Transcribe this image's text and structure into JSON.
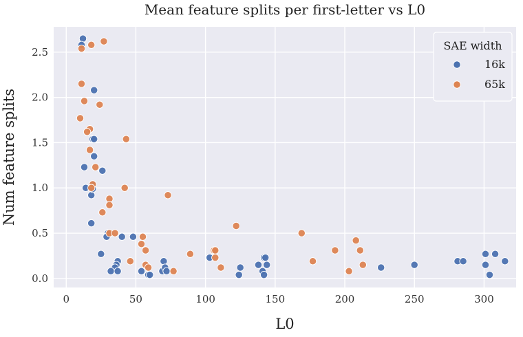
{
  "chart_data": {
    "type": "scatter",
    "title": "Mean feature splits per first-letter vs L0",
    "xlabel": "L0",
    "ylabel": "Num feature splits",
    "xlim": [
      -9,
      323
    ],
    "ylim": [
      -0.1,
      2.78
    ],
    "x_ticks": [
      0,
      50,
      100,
      150,
      200,
      250,
      300
    ],
    "y_ticks": [
      0.0,
      0.5,
      1.0,
      1.5,
      2.0,
      2.5
    ],
    "y_tick_labels": [
      "0.0",
      "0.5",
      "1.0",
      "1.5",
      "2.0",
      "2.5"
    ],
    "grid": true,
    "legend": {
      "title": "SAE width",
      "placement": "top-right"
    },
    "series": [
      {
        "name": "16k",
        "color": "#4c72b0",
        "points": [
          [
            12,
            2.65
          ],
          [
            11,
            2.58
          ],
          [
            20,
            2.08
          ],
          [
            19,
            1.54
          ],
          [
            20,
            1.54
          ],
          [
            20,
            1.35
          ],
          [
            13,
            1.23
          ],
          [
            26,
            1.19
          ],
          [
            14,
            1.0
          ],
          [
            18,
            0.92
          ],
          [
            19,
            1.0
          ],
          [
            19,
            0.99
          ],
          [
            19,
            1.04
          ],
          [
            18,
            0.61
          ],
          [
            30,
            0.5
          ],
          [
            29,
            0.46
          ],
          [
            40,
            0.46
          ],
          [
            48,
            0.46
          ],
          [
            25,
            0.27
          ],
          [
            37,
            0.19
          ],
          [
            36,
            0.15
          ],
          [
            35,
            0.12
          ],
          [
            32,
            0.08
          ],
          [
            37,
            0.08
          ],
          [
            54,
            0.08
          ],
          [
            59,
            0.04
          ],
          [
            60,
            0.04
          ],
          [
            69,
            0.08
          ],
          [
            70,
            0.19
          ],
          [
            71,
            0.12
          ],
          [
            72,
            0.08
          ],
          [
            103,
            0.23
          ],
          [
            124,
            0.04
          ],
          [
            125,
            0.12
          ],
          [
            138,
            0.15
          ],
          [
            141,
            0.08
          ],
          [
            142,
            0.23
          ],
          [
            142,
            0.04
          ],
          [
            143,
            0.23
          ],
          [
            144,
            0.15
          ],
          [
            226,
            0.12
          ],
          [
            250,
            0.15
          ],
          [
            281,
            0.19
          ],
          [
            285,
            0.19
          ],
          [
            301,
            0.27
          ],
          [
            301,
            0.15
          ],
          [
            304,
            0.04
          ],
          [
            308,
            0.27
          ],
          [
            315,
            0.19
          ]
        ]
      },
      {
        "name": "65k",
        "color": "#dd8452",
        "points": [
          [
            11,
            2.54
          ],
          [
            18,
            2.58
          ],
          [
            27,
            2.62
          ],
          [
            11,
            2.15
          ],
          [
            13,
            1.96
          ],
          [
            24,
            1.92
          ],
          [
            10,
            1.77
          ],
          [
            17,
            1.65
          ],
          [
            15,
            1.62
          ],
          [
            43,
            1.54
          ],
          [
            17,
            1.42
          ],
          [
            21,
            1.23
          ],
          [
            19,
            1.04
          ],
          [
            18,
            1.0
          ],
          [
            42,
            1.0
          ],
          [
            73,
            0.92
          ],
          [
            31,
            0.88
          ],
          [
            31,
            0.81
          ],
          [
            26,
            0.73
          ],
          [
            31,
            0.5
          ],
          [
            35,
            0.5
          ],
          [
            55,
            0.46
          ],
          [
            54,
            0.38
          ],
          [
            57,
            0.31
          ],
          [
            46,
            0.19
          ],
          [
            57,
            0.15
          ],
          [
            59,
            0.12
          ],
          [
            77,
            0.08
          ],
          [
            89,
            0.27
          ],
          [
            106,
            0.31
          ],
          [
            107,
            0.31
          ],
          [
            107,
            0.23
          ],
          [
            111,
            0.12
          ],
          [
            122,
            0.58
          ],
          [
            169,
            0.5
          ],
          [
            177,
            0.19
          ],
          [
            193,
            0.31
          ],
          [
            203,
            0.08
          ],
          [
            208,
            0.42
          ],
          [
            211,
            0.31
          ],
          [
            213,
            0.15
          ]
        ]
      }
    ]
  }
}
